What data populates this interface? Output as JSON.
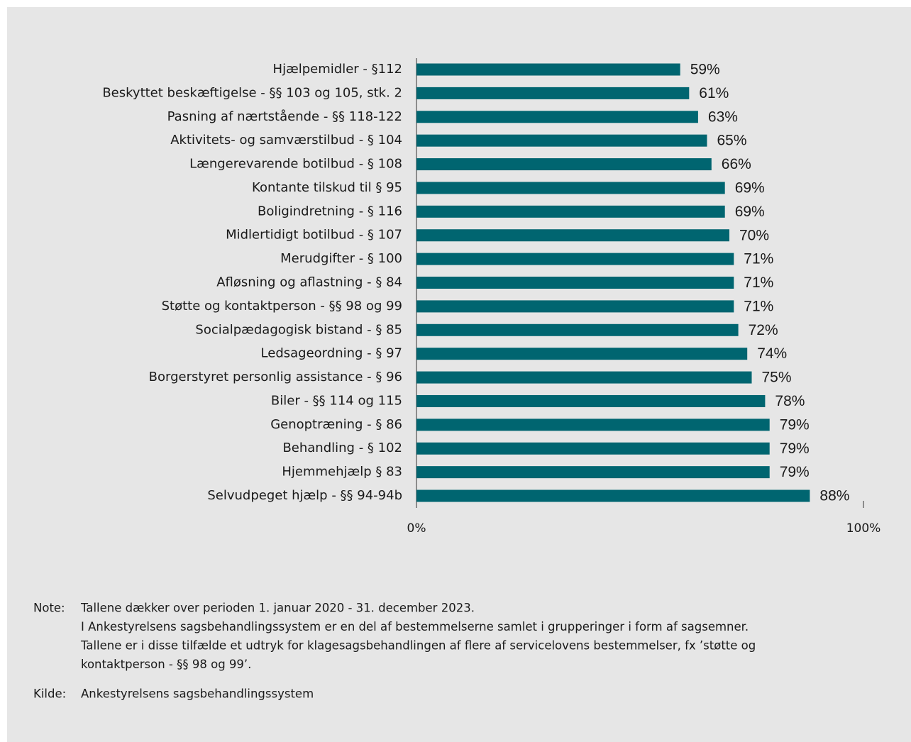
{
  "chart_data": {
    "type": "bar",
    "orientation": "horizontal",
    "categories": [
      "Hjælpemidler - §112",
      "Beskyttet beskæftigelse - §§ 103 og 105, stk. 2",
      "Pasning af nærtstående - §§ 118-122",
      "Aktivitets- og samværstilbud - § 104",
      "Længerevarende botilbud - § 108",
      "Kontante tilskud til § 95",
      "Boligindretning - § 116",
      "Midlertidigt botilbud - § 107",
      "Merudgifter - § 100",
      "Afløsning og aflastning - § 84",
      "Støtte og kontaktperson - §§ 98 og 99",
      "Socialpædagogisk bistand - § 85",
      "Ledsageordning - § 97",
      "Borgerstyret personlig assistance - § 96",
      "Biler - §§ 114 og 115",
      "Genoptræning - § 86",
      "Behandling - § 102",
      "Hjemmehjælp § 83",
      "Selvudpeget hjælp - §§ 94-94b"
    ],
    "values": [
      59,
      61,
      63,
      65,
      66,
      69,
      69,
      70,
      71,
      71,
      71,
      72,
      74,
      75,
      78,
      79,
      79,
      79,
      88
    ],
    "value_labels": [
      "59%",
      "61%",
      "63%",
      "65%",
      "66%",
      "69%",
      "69%",
      "70%",
      "71%",
      "71%",
      "71%",
      "72%",
      "74%",
      "75%",
      "78%",
      "79%",
      "79%",
      "79%",
      "88%"
    ],
    "color": "#006570",
    "xlim": [
      0,
      100
    ],
    "xticks": [
      {
        "value": 0,
        "label": "0%"
      },
      {
        "value": 100,
        "label": "100%"
      }
    ],
    "grid": false
  },
  "notes": {
    "label": "Note:",
    "lines": [
      "Tallene dækker over perioden 1. januar 2020 - 31. december 2023.",
      "I Ankestyrelsens sagsbehandlingssystem er en del af bestemmelserne samlet i grupperinger i form af sagsemner.",
      "Tallene er i disse tilfælde et udtryk for klagesagsbehandlingen af flere af servicelovens bestemmelser, fx ’støtte og",
      "kontaktperson - §§ 98 og 99’."
    ]
  },
  "source": {
    "label": "Kilde:",
    "text": "Ankestyrelsens sagsbehandlingssystem"
  }
}
